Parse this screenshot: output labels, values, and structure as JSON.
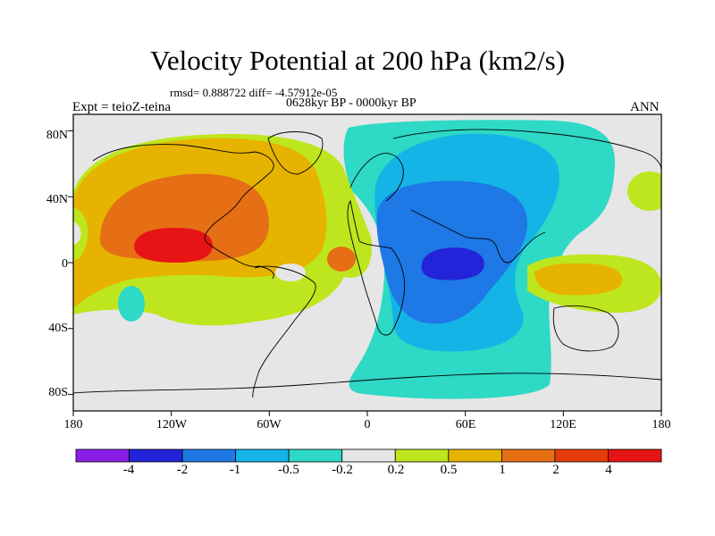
{
  "title": "Velocity Potential at 200 hPa (km2/s)",
  "stats": "rmsd= 0.888722 diff= -4.57912e-05",
  "period": "0628kyr BP - 0000kyr BP",
  "experiment": "Expt = teioZ-teina",
  "season": "ANN",
  "lat_labels": [
    "80N",
    "40N",
    "0",
    "40S",
    "80S"
  ],
  "lon_labels": [
    "180",
    "120W",
    "60W",
    "0",
    "60E",
    "120E",
    "180"
  ],
  "colorbar": {
    "labels": [
      "-4",
      "-2",
      "-1",
      "-0.5",
      "-0.2",
      "0.2",
      "0.5",
      "1",
      "2",
      "4"
    ],
    "colors": [
      "#8a1ee6",
      "#2323d9",
      "#1e78e6",
      "#14b4e6",
      "#2ed9c6",
      "#e6e6e6",
      "#bee61e",
      "#e6b400",
      "#e66e14",
      "#e63c0a",
      "#e61414"
    ]
  },
  "chart_data": {
    "type": "contour_map",
    "projection": "cylindrical_equidistant",
    "lon_range": [
      -180,
      180
    ],
    "lat_range": [
      -90,
      90
    ],
    "levels": [
      -4,
      -2,
      -1,
      -0.5,
      -0.2,
      0.2,
      0.5,
      1,
      2,
      4
    ],
    "features": [
      {
        "name": "Pacific positive maximum",
        "lon": -123,
        "lat": 8,
        "level_class": "2 to 4"
      },
      {
        "name": "Africa / W. Indian Ocean negative minimum",
        "lon": 50,
        "lat": 0,
        "level_class": "-4 to -2"
      },
      {
        "name": "Central Atlantic positive lobe",
        "lon": -22,
        "lat": 2,
        "level_class": "1 to 2"
      }
    ]
  }
}
